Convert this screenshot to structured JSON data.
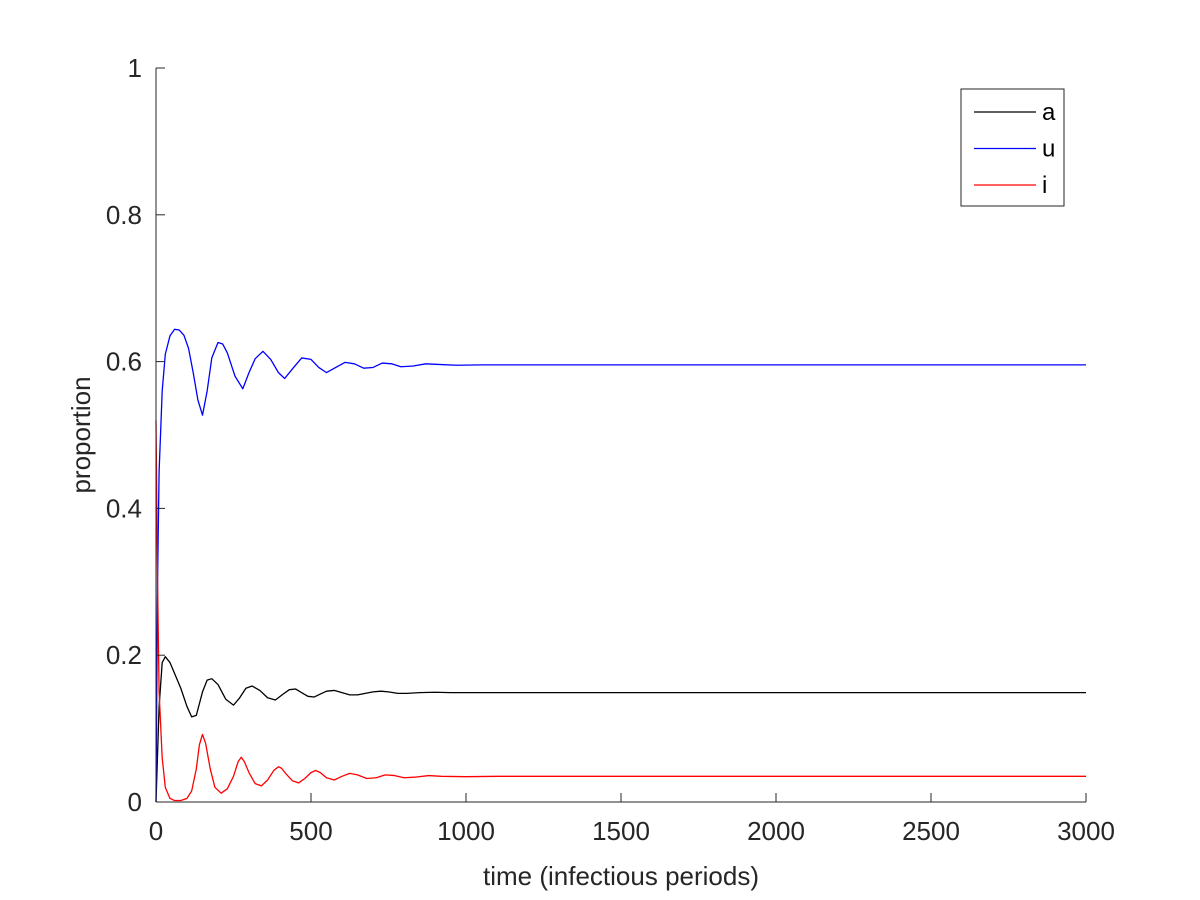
{
  "chart_data": {
    "type": "line",
    "title": "",
    "xlabel": "time (infectious periods)",
    "ylabel": "proportion",
    "xlim": [
      0,
      3000
    ],
    "ylim": [
      0,
      1
    ],
    "xticks": [
      0,
      500,
      1000,
      1500,
      2000,
      2500,
      3000
    ],
    "xtick_labels": [
      "0",
      "500",
      "1000",
      "1500",
      "2000",
      "2500",
      "3000"
    ],
    "yticks": [
      0,
      0.2,
      0.4,
      0.6,
      0.8,
      1
    ],
    "ytick_labels": [
      "0",
      "0.2",
      "0.4",
      "0.6",
      "0.8",
      "1"
    ],
    "grid": false,
    "legend_position": "top-right",
    "series": [
      {
        "name": "a",
        "color": "#000000",
        "x": [
          0,
          10,
          20,
          30,
          45,
          60,
          80,
          100,
          115,
          130,
          150,
          165,
          180,
          200,
          225,
          250,
          270,
          290,
          310,
          335,
          360,
          385,
          410,
          430,
          450,
          470,
          490,
          510,
          530,
          550,
          575,
          600,
          625,
          650,
          675,
          700,
          725,
          750,
          780,
          810,
          850,
          900,
          950,
          1000,
          1100,
          1200,
          1400,
          1700,
          2000,
          2500,
          3000
        ],
        "y": [
          0.0,
          0.13,
          0.19,
          0.198,
          0.19,
          0.175,
          0.155,
          0.13,
          0.116,
          0.118,
          0.15,
          0.166,
          0.168,
          0.16,
          0.14,
          0.132,
          0.142,
          0.155,
          0.158,
          0.152,
          0.142,
          0.139,
          0.147,
          0.153,
          0.154,
          0.149,
          0.144,
          0.143,
          0.147,
          0.151,
          0.152,
          0.149,
          0.146,
          0.146,
          0.148,
          0.15,
          0.151,
          0.15,
          0.148,
          0.148,
          0.149,
          0.1495,
          0.149,
          0.149,
          0.149,
          0.149,
          0.149,
          0.149,
          0.149,
          0.149,
          0.149
        ]
      },
      {
        "name": "u",
        "color": "#0000ff",
        "x": [
          0,
          5,
          10,
          20,
          30,
          45,
          60,
          75,
          90,
          105,
          120,
          135,
          150,
          165,
          180,
          200,
          215,
          230,
          255,
          280,
          300,
          320,
          345,
          370,
          395,
          415,
          440,
          470,
          500,
          525,
          550,
          580,
          610,
          640,
          670,
          700,
          730,
          760,
          790,
          830,
          870,
          920,
          970,
          1050,
          1150,
          1300,
          1500,
          1800,
          2200,
          2600,
          3000
        ],
        "y": [
          0.0,
          0.3,
          0.45,
          0.56,
          0.61,
          0.635,
          0.644,
          0.643,
          0.636,
          0.618,
          0.585,
          0.548,
          0.527,
          0.56,
          0.605,
          0.626,
          0.624,
          0.612,
          0.58,
          0.563,
          0.585,
          0.604,
          0.614,
          0.603,
          0.585,
          0.577,
          0.59,
          0.605,
          0.603,
          0.592,
          0.585,
          0.592,
          0.599,
          0.597,
          0.591,
          0.592,
          0.598,
          0.597,
          0.593,
          0.594,
          0.597,
          0.596,
          0.595,
          0.5955,
          0.5955,
          0.5955,
          0.5955,
          0.5955,
          0.5955,
          0.5955,
          0.5955
        ]
      },
      {
        "name": "i",
        "color": "#ff0000",
        "x": [
          0,
          5,
          10,
          20,
          30,
          45,
          60,
          80,
          100,
          115,
          130,
          140,
          150,
          160,
          175,
          190,
          210,
          230,
          250,
          265,
          275,
          285,
          300,
          320,
          340,
          360,
          380,
          395,
          405,
          420,
          440,
          460,
          480,
          500,
          515,
          530,
          550,
          575,
          600,
          625,
          650,
          680,
          710,
          740,
          770,
          800,
          840,
          880,
          920,
          1000,
          1100,
          1300,
          1600,
          2000,
          2500,
          3000
        ],
        "y": [
          0.52,
          0.3,
          0.15,
          0.06,
          0.02,
          0.005,
          0.002,
          0.002,
          0.005,
          0.015,
          0.045,
          0.078,
          0.092,
          0.08,
          0.045,
          0.02,
          0.012,
          0.018,
          0.035,
          0.055,
          0.061,
          0.055,
          0.04,
          0.025,
          0.022,
          0.03,
          0.043,
          0.048,
          0.046,
          0.038,
          0.029,
          0.026,
          0.032,
          0.04,
          0.043,
          0.04,
          0.033,
          0.03,
          0.035,
          0.039,
          0.037,
          0.032,
          0.033,
          0.037,
          0.036,
          0.033,
          0.034,
          0.036,
          0.035,
          0.0345,
          0.035,
          0.035,
          0.035,
          0.035,
          0.035,
          0.035
        ]
      }
    ]
  }
}
